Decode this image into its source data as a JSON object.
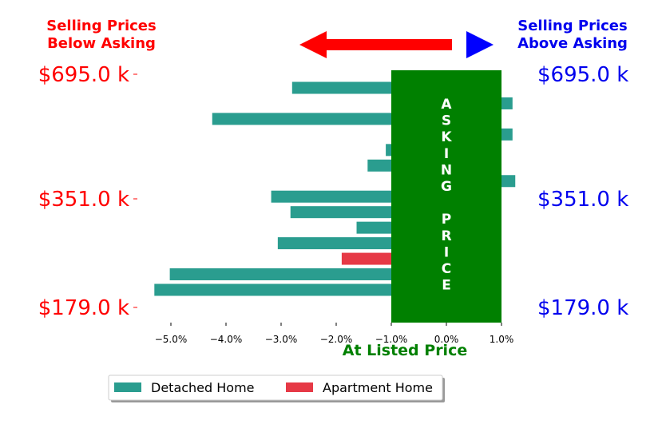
{
  "header": {
    "below_line1": "Selling Prices",
    "below_line2": "Below Asking",
    "above_line1": "Selling Prices",
    "above_line2": "Above Asking"
  },
  "band_text": [
    "A",
    "S",
    "K",
    "I",
    "N",
    "G",
    "",
    "P",
    "R",
    "I",
    "C",
    "E"
  ],
  "chart_data": {
    "type": "bar",
    "orientation": "horizontal",
    "xlabel": "At Listed Price",
    "xlim": [
      -5.5,
      1.0
    ],
    "xticks": [
      -5.0,
      -4.0,
      -3.0,
      -2.0,
      -1.0,
      0.0,
      1.0
    ],
    "xtick_labels": [
      "−5.0%",
      "−4.0%",
      "−3.0%",
      "−2.0%",
      "−1.0%",
      "0.0%",
      "1.0%"
    ],
    "price_labels": [
      "$695.0 k",
      "$351.0 k",
      "$179.0 k"
    ],
    "asking_band": [
      -1.0,
      1.0
    ],
    "bars": [
      {
        "series": "Detached Home",
        "value": -2.8
      },
      {
        "series": "Detached Home",
        "value": 1.2
      },
      {
        "series": "Detached Home",
        "value": -4.25
      },
      {
        "series": "Detached Home",
        "value": 1.2
      },
      {
        "series": "Detached Home",
        "value": -1.1
      },
      {
        "series": "Detached Home",
        "value": -1.43
      },
      {
        "series": "Detached Home",
        "value": 1.25
      },
      {
        "series": "Detached Home",
        "value": -3.18
      },
      {
        "series": "Detached Home",
        "value": -2.83
      },
      {
        "series": "Detached Home",
        "value": -1.63
      },
      {
        "series": "Detached Home",
        "value": -3.06
      },
      {
        "series": "Apartment Home",
        "value": -1.9
      },
      {
        "series": "Detached Home",
        "value": -5.02
      },
      {
        "series": "Detached Home",
        "value": -5.3
      }
    ],
    "series": [
      {
        "name": "Detached Home",
        "color": "#2a9d8f"
      },
      {
        "name": "Apartment Home",
        "color": "#e63946"
      }
    ],
    "legend_position": "bottom-center"
  },
  "colors": {
    "below": "#ff0000",
    "above": "#0000ee",
    "band": "#008000",
    "arrow_left": "#ff0000",
    "arrow_right": "#0000ff"
  }
}
